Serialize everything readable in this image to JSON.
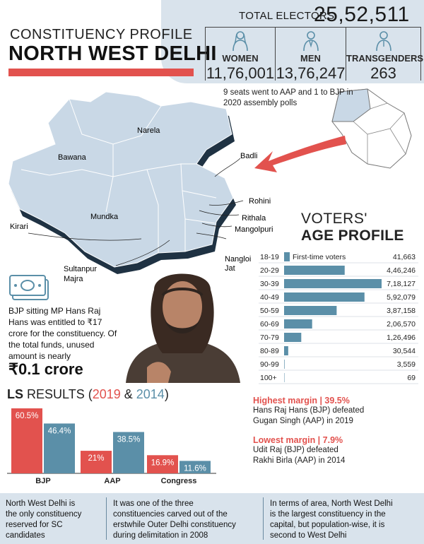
{
  "header": {
    "kicker": "CONSTITUENCY PROFILE",
    "title": "NORTH WEST DELHI"
  },
  "electors": {
    "label": "TOTAL ELECTORS",
    "value": "25,52,511",
    "groups": [
      {
        "label": "WOMEN",
        "value": "11,76,001",
        "icon": "woman-icon"
      },
      {
        "label": "MEN",
        "value": "13,76,247",
        "icon": "man-icon"
      },
      {
        "label": "TRANSGENDERS",
        "value": "263",
        "icon": "person-icon"
      }
    ]
  },
  "map": {
    "note": "9 seats went to AAP and 1 to BJP in 2020 assembly polls",
    "labels": {
      "narela": "Narela",
      "bawana": "Bawana",
      "mundka": "Mundka",
      "kirari": "Kirari",
      "badli": "Badli",
      "rohini": "Rohini",
      "rithala": "Rithala",
      "mangolpuri": "Mangolpuri",
      "nangloi": "Nangloi",
      "jat": "Jat",
      "sultanpur": "Sultanpur",
      "majra": "Majra"
    }
  },
  "age_profile": {
    "heading_line1": "VOTERS'",
    "heading_line2": "AGE PROFILE",
    "first_time_label": "First-time voters"
  },
  "chart_data": [
    {
      "type": "bar",
      "orientation": "horizontal",
      "title": "VOTERS' AGE PROFILE",
      "categories": [
        "18-19",
        "20-29",
        "30-39",
        "40-49",
        "50-59",
        "60-69",
        "70-79",
        "80-89",
        "90-99",
        "100+"
      ],
      "values": [
        41663,
        446246,
        718127,
        592079,
        387158,
        206570,
        126496,
        30544,
        3559,
        69
      ],
      "value_labels": [
        "41,663",
        "4,46,246",
        "7,18,127",
        "5,92,079",
        "3,87,158",
        "2,06,570",
        "1,26,496",
        "30,544",
        "3,559",
        "69"
      ],
      "annotation": "First-time voters",
      "bar_color": "#5b8fa8",
      "xlim": [
        0,
        718127
      ]
    },
    {
      "type": "bar",
      "title": "LS RESULTS (2019 & 2014)",
      "categories": [
        "BJP",
        "AAP",
        "Congress"
      ],
      "series": [
        {
          "name": "2019",
          "values": [
            60.5,
            21,
            16.9
          ],
          "color": "#e2524e"
        },
        {
          "name": "2014",
          "values": [
            46.4,
            38.5,
            11.6
          ],
          "color": "#5b8fa8"
        }
      ],
      "value_labels": {
        "2019": [
          "60.5%",
          "21%",
          "16.9%"
        ],
        "2014": [
          "46.4%",
          "38.5%",
          "11.6%"
        ]
      },
      "ylim": [
        0,
        60.5
      ]
    }
  ],
  "mp": {
    "text": "BJP sitting MP Hans Raj Hans was entitled to ₹17 crore for the constituency. Of the total funds, unused amount is nearly",
    "amount": "₹0.1 crore"
  },
  "ls": {
    "title_bold": "LS",
    "title_rest": " RESULTS (",
    "year1": "2019",
    "amp": " & ",
    "year2": "2014",
    "close": ")"
  },
  "margins": {
    "highest_head": "Highest margin | 39.5%",
    "highest_text1": "Hans Raj Hans (BJP) defeated",
    "highest_text2": "Gugan Singh (AAP) in 2019",
    "lowest_head": "Lowest margin | 7.9%",
    "lowest_text1": "Udit Raj (BJP) defeated",
    "lowest_text2": "Rakhi Birla (AAP) in 2014"
  },
  "footer": {
    "col1": [
      "North West Delhi is",
      "the only constituency",
      "reserved for SC",
      "candidates"
    ],
    "col2": [
      "It was one of the three",
      "constituencies carved out of the",
      "erstwhile Outer Delhi constituency",
      "during delimitation in 2008"
    ],
    "col3": [
      "In terms of area, North West Delhi",
      "is the largest constituency in the",
      "capital, but population-wise, it is",
      "second to West Delhi"
    ]
  },
  "colors": {
    "red": "#e2524e",
    "teal": "#5b8fa8",
    "panel": "#d9e3ec",
    "map": "#c9d8e6"
  }
}
